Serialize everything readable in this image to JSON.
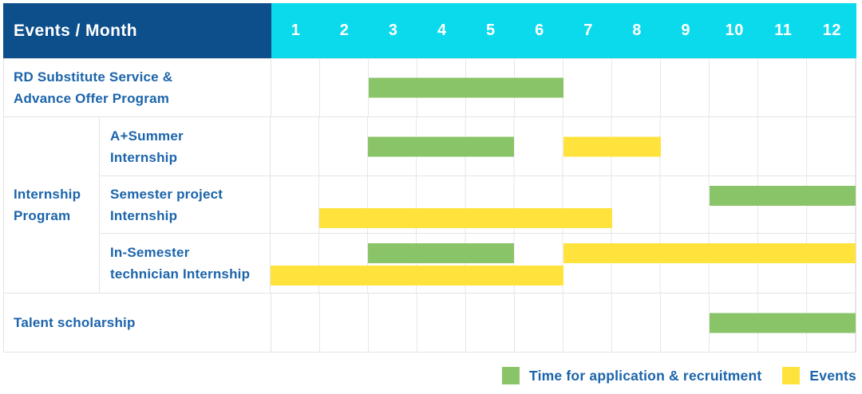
{
  "header": {
    "title": "Events / Month",
    "months": [
      "1",
      "2",
      "3",
      "4",
      "5",
      "6",
      "7",
      "8",
      "9",
      "10",
      "11",
      "12"
    ]
  },
  "rows": {
    "rd": {
      "label": [
        "RD Substitute Service &",
        "Advance Offer Program"
      ]
    },
    "internship_group": {
      "label": [
        "Internship",
        "Program"
      ]
    },
    "a_summer": {
      "label": [
        "A+Summer",
        "Internship"
      ]
    },
    "semester_project": {
      "label": [
        "Semester project",
        "Internship"
      ]
    },
    "in_semester": {
      "label": [
        "In-Semester",
        "technician Internship"
      ]
    },
    "talent": {
      "label": [
        "Talent scholarship"
      ]
    }
  },
  "legend": {
    "application": {
      "label": "Time for application & recruitment",
      "color": "#8ac468"
    },
    "events": {
      "label": "Events",
      "color": "#ffe33c"
    }
  },
  "colors": {
    "header_navy": "#0d4f8b",
    "header_cyan": "#0bd9ec",
    "bar_green": "#8ac468",
    "bar_yellow": "#ffe33c",
    "text_blue": "#1b64ab",
    "grid_gray": "#e4e4e4"
  },
  "chart_data": {
    "type": "gantt",
    "title": "Events / Month",
    "x_unit": "month",
    "x_ticks": [
      1,
      2,
      3,
      4,
      5,
      6,
      7,
      8,
      9,
      10,
      11,
      12
    ],
    "x_range": [
      1,
      12
    ],
    "grid": true,
    "legend_position": "bottom-right",
    "series_legend": [
      {
        "key": "application",
        "label": "Time for application & recruitment",
        "color": "#8ac468"
      },
      {
        "key": "events",
        "label": "Events",
        "color": "#ffe33c"
      }
    ],
    "tasks": [
      {
        "row": "rd",
        "group": null,
        "label": "RD Substitute Service & Advance Offer Program",
        "bars": [
          {
            "series": "application",
            "start_month": 3,
            "end_month": 6,
            "lane": "center"
          }
        ]
      },
      {
        "row": "a_summer",
        "group": "Internship Program",
        "label": "A+Summer Internship",
        "bars": [
          {
            "series": "application",
            "start_month": 3,
            "end_month": 5,
            "lane": "center"
          },
          {
            "series": "events",
            "start_month": 7,
            "end_month": 8,
            "lane": "center"
          }
        ]
      },
      {
        "row": "semester_project",
        "group": "Internship Program",
        "label": "Semester project Internship",
        "bars": [
          {
            "series": "application",
            "start_month": 10,
            "end_month": 12,
            "lane": "top"
          },
          {
            "series": "events",
            "start_month": 2,
            "end_month": 7,
            "lane": "bottom"
          }
        ]
      },
      {
        "row": "in_semester",
        "group": "Internship Program",
        "label": "In-Semester technician Internship",
        "bars": [
          {
            "series": "application",
            "start_month": 3,
            "end_month": 5,
            "lane": "top"
          },
          {
            "series": "events",
            "start_month": 7,
            "end_month": 12,
            "lane": "top"
          },
          {
            "series": "events",
            "start_month": 1,
            "end_month": 6,
            "lane": "bottom"
          }
        ]
      },
      {
        "row": "talent",
        "group": null,
        "label": "Talent scholarship",
        "bars": [
          {
            "series": "application",
            "start_month": 10,
            "end_month": 12,
            "lane": "center"
          }
        ]
      }
    ]
  }
}
